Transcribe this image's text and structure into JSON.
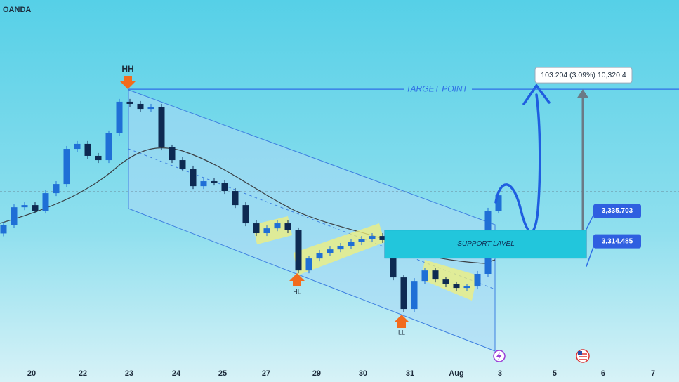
{
  "chart_data": {
    "type": "candlestick",
    "source": "OANDA",
    "up_color": "#1f6fd6",
    "down_color": "#0e2a52",
    "x": [
      0,
      1,
      2,
      3,
      4,
      5,
      6,
      7,
      8,
      9,
      10,
      11,
      12,
      13,
      14,
      15,
      16,
      17,
      18,
      19,
      20,
      21,
      22,
      23,
      24,
      25,
      26,
      27,
      28,
      29,
      30,
      31,
      32,
      33,
      34,
      35,
      36,
      37,
      38,
      39,
      40,
      41,
      42,
      43,
      44,
      45,
      46,
      47
    ],
    "open": [
      3320.0,
      3326.1,
      3338.4,
      3339.9,
      3336.0,
      3348.3,
      3354.7,
      3379.4,
      3382.9,
      3374.5,
      3371.5,
      3390.3,
      3412.5,
      3411.0,
      3407.5,
      3409.0,
      3380.4,
      3371.5,
      3365.6,
      3353.2,
      3356.7,
      3355.7,
      3349.8,
      3339.9,
      3327.1,
      3320.2,
      3323.6,
      3327.1,
      3322.2,
      3294.0,
      3302.4,
      3306.4,
      3308.8,
      3311.3,
      3313.8,
      3316.2,
      3318.2,
      3315.3,
      3289.1,
      3266.9,
      3286.6,
      3294.0,
      3287.6,
      3284.2,
      3281.7,
      3282.7,
      3291.6,
      3336.0
    ],
    "high": [
      3328.1,
      3340.4,
      3341.9,
      3341.9,
      3350.3,
      3356.7,
      3381.4,
      3384.9,
      3384.9,
      3376.5,
      3392.3,
      3414.5,
      3414.5,
      3413.0,
      3411.0,
      3411.0,
      3382.4,
      3373.5,
      3367.6,
      3358.7,
      3358.7,
      3357.7,
      3351.8,
      3341.9,
      3329.1,
      3325.6,
      3329.1,
      3329.1,
      3324.2,
      3304.4,
      3308.4,
      3310.8,
      3313.3,
      3315.8,
      3318.2,
      3320.2,
      3320.2,
      3317.3,
      3291.1,
      3288.6,
      3296.0,
      3296.0,
      3289.6,
      3286.2,
      3284.7,
      3293.6,
      3338.0,
      3348.8
    ],
    "low": [
      3318.0,
      3324.1,
      3336.4,
      3334.0,
      3334.0,
      3346.3,
      3352.7,
      3377.4,
      3372.5,
      3369.5,
      3369.5,
      3388.3,
      3409.0,
      3405.5,
      3405.5,
      3378.4,
      3369.5,
      3363.6,
      3351.2,
      3351.2,
      3353.7,
      3347.8,
      3337.9,
      3325.1,
      3318.2,
      3318.2,
      3321.6,
      3320.2,
      3292.0,
      3292.0,
      3300.4,
      3304.4,
      3306.8,
      3309.3,
      3311.8,
      3314.2,
      3313.3,
      3287.1,
      3264.9,
      3264.9,
      3284.6,
      3285.6,
      3282.2,
      3279.7,
      3279.7,
      3280.7,
      3289.6,
      3334.0
    ],
    "close": [
      3326.1,
      3338.4,
      3339.9,
      3336.0,
      3348.3,
      3354.7,
      3379.4,
      3382.9,
      3374.5,
      3371.5,
      3390.3,
      3412.5,
      3411.0,
      3407.5,
      3409.0,
      3380.4,
      3371.5,
      3365.6,
      3353.2,
      3356.7,
      3355.7,
      3349.8,
      3339.9,
      3327.1,
      3320.2,
      3323.6,
      3327.1,
      3322.2,
      3294.0,
      3302.4,
      3306.4,
      3308.8,
      3311.3,
      3313.8,
      3316.2,
      3318.2,
      3315.3,
      3289.1,
      3266.9,
      3286.6,
      3294.0,
      3287.6,
      3284.2,
      3281.7,
      3282.7,
      3291.6,
      3336.0,
      3346.8
    ],
    "xlim": [
      -0.333,
      64.133
    ],
    "ylim": [
      3232.4,
      3484
    ],
    "xticks": [
      {
        "value": 2.67,
        "label": "20"
      },
      {
        "value": 7.53,
        "label": "22"
      },
      {
        "value": 11.93,
        "label": "23"
      },
      {
        "value": 16.4,
        "label": "24"
      },
      {
        "value": 20.8,
        "label": "25"
      },
      {
        "value": 24.93,
        "label": "27"
      },
      {
        "value": 29.73,
        "label": "29"
      },
      {
        "value": 34.13,
        "label": "30"
      },
      {
        "value": 38.6,
        "label": "31"
      },
      {
        "value": 43,
        "label": "Aug"
      },
      {
        "value": 47.13,
        "label": "3"
      },
      {
        "value": 52.33,
        "label": "5"
      },
      {
        "value": 56.93,
        "label": "6"
      },
      {
        "value": 61.67,
        "label": "7"
      }
    ],
    "price_labels": [
      {
        "value": 3335.703,
        "label": "3,335.703"
      },
      {
        "value": 3314.485,
        "label": "3,314.485"
      }
    ],
    "target": {
      "text": "TARGET POINT",
      "value": 3421.3
    },
    "measure_label": "103.204 (3.09%) 10,320.4",
    "support_text": "SUPPORT LAVEL",
    "pivots": [
      "HH",
      "HL",
      "LL"
    ]
  }
}
